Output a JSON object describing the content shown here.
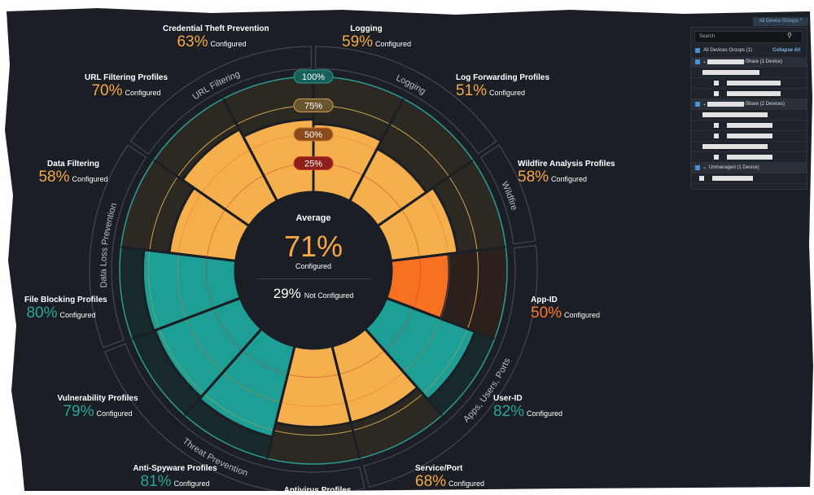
{
  "colors": {
    "background": "#1b1f25",
    "orange": "#fdb44e",
    "teal": "#1fa39a",
    "dark_orange": "#ff7424",
    "text_orange": "#f5a844",
    "text_teal": "#26a69a"
  },
  "chart_data": {
    "type": "polar-bar",
    "scale_labels": [
      "25%",
      "50%",
      "75%",
      "100%"
    ],
    "segments": [
      {
        "name": "Logging",
        "value": 59,
        "status": "orange"
      },
      {
        "name": "Log Forwarding Profiles",
        "value": 51,
        "status": "orange"
      },
      {
        "name": "Wildfire Analysis Profiles",
        "value": 58,
        "status": "orange"
      },
      {
        "name": "App-ID",
        "value": 50,
        "status": "dark_orange"
      },
      {
        "name": "User-ID",
        "value": 82,
        "status": "teal"
      },
      {
        "name": "Service/Port",
        "value": 68,
        "status": "orange"
      },
      {
        "name": "Antivirus Profiles",
        "value": 68,
        "status": "orange"
      },
      {
        "name": "Anti-Spyware Profiles",
        "value": 81,
        "status": "teal"
      },
      {
        "name": "Vulnerability Profiles",
        "value": 79,
        "status": "teal"
      },
      {
        "name": "File Blocking Profiles",
        "value": 80,
        "status": "teal"
      },
      {
        "name": "Data Filtering",
        "value": 58,
        "status": "orange"
      },
      {
        "name": "URL Filtering Profiles",
        "value": 70,
        "status": "orange"
      },
      {
        "name": "Credential Theft Prevention",
        "value": 63,
        "status": "orange"
      }
    ],
    "groups": [
      {
        "name": "Logging",
        "from": 0,
        "to": 2
      },
      {
        "name": "Wildfire",
        "from": 2,
        "to": 3
      },
      {
        "name": "Apps, Users, Ports",
        "from": 3,
        "to": 6
      },
      {
        "name": "Threat Prevention",
        "from": 6,
        "to": 9
      },
      {
        "name": "Data Loss Prevention",
        "from": 9,
        "to": 11
      },
      {
        "name": "URL Filtering",
        "from": 11,
        "to": 13
      }
    ]
  },
  "average": {
    "title": "Average",
    "configured_pct": "71%",
    "configured_label": "Configured",
    "not_configured_pct": "29%",
    "not_configured_label": "Not Configured"
  },
  "labels": [
    {
      "title": "Credential Theft Prevention",
      "pct": "63%",
      "suffix": "Configured",
      "color": "#f5a844"
    },
    {
      "title": "Logging",
      "pct": "59%",
      "suffix": "Configured",
      "color": "#f5a844"
    },
    {
      "title": "URL Filtering Profiles",
      "pct": "70%",
      "suffix": "Configured",
      "color": "#f5a844"
    },
    {
      "title": "Log Forwarding Profiles",
      "pct": "51%",
      "suffix": "Configured",
      "color": "#f5a844"
    },
    {
      "title": "Data Filtering",
      "pct": "58%",
      "suffix": "Configured",
      "color": "#f5a844"
    },
    {
      "title": "Wildfire Analysis Profiles",
      "pct": "58%",
      "suffix": "Configured",
      "color": "#f5a844"
    },
    {
      "title": "File Blocking Profiles",
      "pct": "80%",
      "suffix": "Configured",
      "color": "#26a69a"
    },
    {
      "title": "App-ID",
      "pct": "50%",
      "suffix": "Configured",
      "color": "#ff7424"
    },
    {
      "title": "Vulnerability Profiles",
      "pct": "79%",
      "suffix": "Configured",
      "color": "#26a69a"
    },
    {
      "title": "User-ID",
      "pct": "82%",
      "suffix": "Configured",
      "color": "#26a69a"
    },
    {
      "title": "Anti-Spyware Profiles",
      "pct": "81%",
      "suffix": "Configured",
      "color": "#26a69a"
    },
    {
      "title": "Service/Port",
      "pct": "68%",
      "suffix": "Configured",
      "color": "#f5a844"
    },
    {
      "title": "Antivirus Profiles"
    }
  ],
  "device_panel": {
    "toggle_label": "All Device Groups ^",
    "search_placeholder": "Search",
    "all_label": "All Devices Groups (1)",
    "collapse_label": "Collapse All",
    "groups": [
      "-Share (1 Device)",
      "-Share (2 Devices)",
      "Unmanaged (1 Device)"
    ]
  }
}
